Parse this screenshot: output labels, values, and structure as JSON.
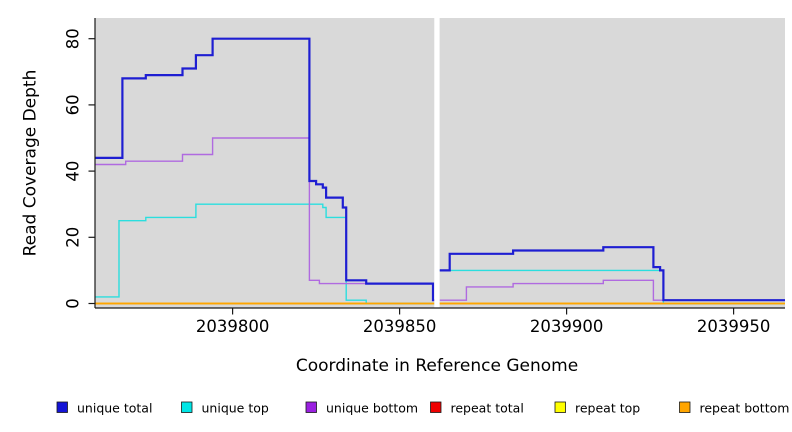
{
  "chart_data": {
    "type": "line",
    "step": true,
    "title": "",
    "xlabel": "Coordinate in Reference Genome",
    "ylabel": "Read Coverage Depth",
    "xlim": [
      2039758.8,
      2039965.4
    ],
    "ylim": [
      -1.36,
      86.25
    ],
    "grid": false,
    "plot_bg": "#D9D9D9",
    "gap_region": {
      "x_start": 2039860.4,
      "x_end": 2039862.0,
      "color": "#FFFFFF"
    },
    "x_ticks": {
      "values": [
        2039800,
        2039850,
        2039900,
        2039950
      ],
      "labels": [
        "2039800",
        "2039850",
        "2039900",
        "2039950"
      ]
    },
    "y_ticks": {
      "values": [
        0,
        20,
        40,
        60,
        80
      ],
      "labels": [
        "0",
        "20",
        "40",
        "60",
        "80"
      ]
    },
    "series": [
      {
        "name": "repeat total",
        "color": "#EE0000",
        "width": 1.4,
        "segments": [
          [
            [
              2039758.8,
              0
            ],
            [
              2039860.4,
              0
            ]
          ],
          [
            [
              2039862,
              0
            ],
            [
              2039965.4,
              0
            ]
          ]
        ]
      },
      {
        "name": "repeat top",
        "color": "#FFFF00",
        "width": 1.4,
        "segments": [
          [
            [
              2039758.8,
              0
            ],
            [
              2039860.4,
              0
            ]
          ],
          [
            [
              2039862,
              0
            ],
            [
              2039965.4,
              0
            ]
          ]
        ]
      },
      {
        "name": "unique top",
        "color": "#2BDEDE",
        "width": 1.4,
        "segments": [
          [
            [
              2039758.8,
              2
            ],
            [
              2039766,
              25
            ],
            [
              2039774,
              26
            ],
            [
              2039789,
              30
            ],
            [
              2039827,
              29
            ],
            [
              2039828,
              26
            ],
            [
              2039834,
              1
            ],
            [
              2039840,
              0
            ],
            [
              2039860.4,
              0
            ]
          ],
          [
            [
              2039862,
              10
            ],
            [
              2039929,
              0
            ],
            [
              2039965.4,
              0
            ]
          ]
        ]
      },
      {
        "name": "unique bottom",
        "color": "#B06AE0",
        "width": 1.4,
        "segments": [
          [
            [
              2039758.8,
              42
            ],
            [
              2039768,
              43
            ],
            [
              2039785,
              45
            ],
            [
              2039794,
              50
            ],
            [
              2039823,
              7
            ],
            [
              2039826,
              6
            ],
            [
              2039860,
              1
            ],
            [
              2039860.4,
              1
            ]
          ],
          [
            [
              2039862,
              1
            ],
            [
              2039870,
              5
            ],
            [
              2039884,
              6
            ],
            [
              2039911,
              7
            ],
            [
              2039926,
              1
            ],
            [
              2039965.4,
              1
            ]
          ]
        ]
      },
      {
        "name": "unique total",
        "color": "#1E1ED2",
        "width": 2.2,
        "segments": [
          [
            [
              2039758.8,
              44
            ],
            [
              2039767,
              68
            ],
            [
              2039774,
              69
            ],
            [
              2039785,
              71
            ],
            [
              2039789,
              75
            ],
            [
              2039794,
              80
            ],
            [
              2039823,
              37
            ],
            [
              2039825,
              36
            ],
            [
              2039827,
              35
            ],
            [
              2039828,
              32
            ],
            [
              2039833,
              29
            ],
            [
              2039834,
              7
            ],
            [
              2039840,
              6
            ],
            [
              2039860,
              1
            ],
            [
              2039860.4,
              1
            ]
          ],
          [
            [
              2039862,
              10
            ],
            [
              2039865,
              15
            ],
            [
              2039884,
              16
            ],
            [
              2039911,
              17
            ],
            [
              2039926,
              11
            ],
            [
              2039928,
              10
            ],
            [
              2039929,
              1
            ],
            [
              2039965.4,
              1
            ]
          ]
        ]
      },
      {
        "name": "repeat bottom",
        "color": "#FFA500",
        "width": 1.8,
        "segments": [
          [
            [
              2039758.8,
              0
            ],
            [
              2039860.4,
              0
            ]
          ],
          [
            [
              2039862,
              0
            ],
            [
              2039965.4,
              0
            ]
          ]
        ]
      }
    ],
    "legend": [
      {
        "label": "unique total",
        "color": "#1414D6"
      },
      {
        "label": "unique top",
        "color": "#00E5E5"
      },
      {
        "label": "unique bottom",
        "color": "#9A20E0"
      },
      {
        "label": "repeat total",
        "color": "#EE0000"
      },
      {
        "label": "repeat top",
        "color": "#FFFF00"
      },
      {
        "label": "repeat bottom",
        "color": "#FFA500"
      }
    ],
    "legend_position": "bottom"
  }
}
